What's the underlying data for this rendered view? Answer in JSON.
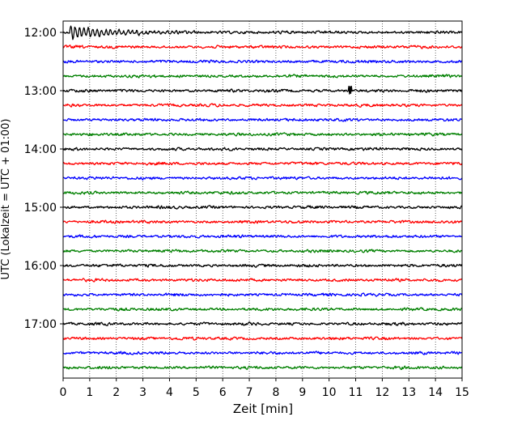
{
  "chart_data": {
    "type": "line",
    "title": "",
    "xlabel": "Zeit  [min]",
    "ylabel": "UTC (Lokalzeit = UTC + 01:00)",
    "xlim": [
      0,
      15
    ],
    "x_ticks": [
      "0",
      "1",
      "2",
      "3",
      "4",
      "5",
      "6",
      "7",
      "8",
      "9",
      "10",
      "11",
      "12",
      "13",
      "14",
      "15"
    ],
    "y_ticks": [
      "12:00",
      "13:00",
      "14:00",
      "15:00",
      "16:00",
      "17:00"
    ],
    "grid": "vertical-dotted",
    "rows": 24,
    "row_start_time": "12:00",
    "row_interval_minutes": 15,
    "colors": [
      "#000000",
      "#ff0000",
      "#0000ff",
      "#008000"
    ],
    "events": [
      {
        "row_time": "12:00",
        "t_min": 0.25,
        "note": "large amplitude burst decaying until about 5 min"
      },
      {
        "row_time": "13:00",
        "t_min": 10.8,
        "note": "short spike"
      }
    ]
  }
}
